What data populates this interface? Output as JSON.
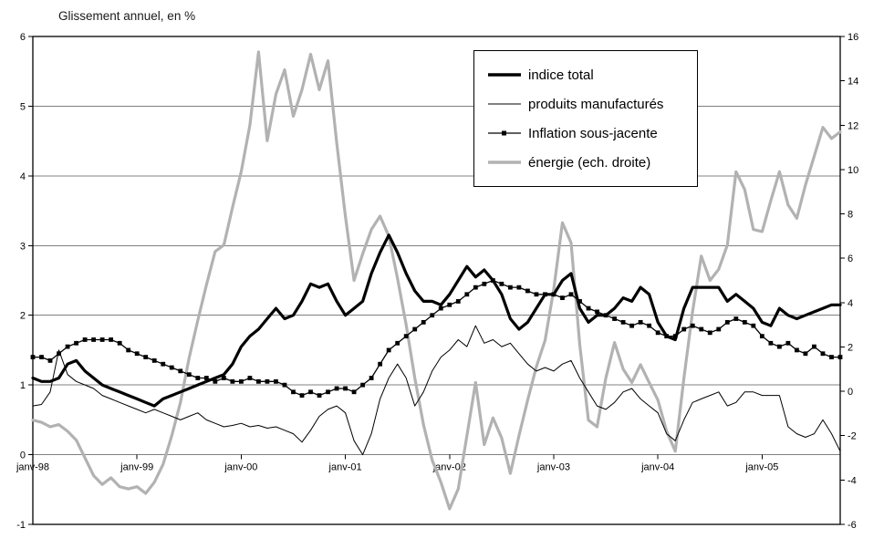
{
  "chart_data": {
    "type": "line",
    "title": "Glissement annuel, en %",
    "x_unit": "monthly",
    "x_start": "janv-98",
    "x_end": "oct-05",
    "n_points": 94,
    "x_tick_labels": [
      "janv-98",
      "janv-99",
      "janv-00",
      "janv-01",
      "janv-02",
      "janv-03",
      "janv-04",
      "janv-05"
    ],
    "x_tick_month_indices": [
      0,
      12,
      24,
      36,
      48,
      60,
      72,
      84
    ],
    "y_left": {
      "min": -1,
      "max": 6,
      "tick_step": 1,
      "labels": [
        "6",
        "5",
        "4",
        "3",
        "2",
        "1",
        "0",
        "-1"
      ]
    },
    "y_right": {
      "min": -6,
      "max": 16,
      "tick_step": 2,
      "labels": [
        "16",
        "14",
        "12",
        "10",
        "8",
        "6",
        "4",
        "2",
        "0",
        "-2",
        "-4",
        "-6"
      ]
    },
    "grid": "horizontal",
    "legend_position": "top-right-inside",
    "colors": {
      "line_black": "#000000",
      "line_gray": "#b2b2b2",
      "gridline": "#808080",
      "axis": "#000000"
    },
    "series": [
      {
        "name": "indice total",
        "axis": "left",
        "color": "#000000",
        "width": 3.2,
        "marker": "none",
        "values": [
          1.1,
          1.05,
          1.05,
          1.1,
          1.3,
          1.35,
          1.2,
          1.1,
          1.0,
          0.95,
          0.9,
          0.85,
          0.8,
          0.75,
          0.7,
          0.8,
          0.85,
          0.9,
          0.95,
          1.0,
          1.05,
          1.1,
          1.15,
          1.3,
          1.55,
          1.7,
          1.8,
          1.95,
          2.1,
          1.95,
          2.0,
          2.2,
          2.45,
          2.4,
          2.45,
          2.2,
          2.0,
          2.1,
          2.2,
          2.6,
          2.9,
          3.15,
          2.9,
          2.6,
          2.35,
          2.2,
          2.2,
          2.15,
          2.3,
          2.5,
          2.7,
          2.55,
          2.65,
          2.5,
          2.3,
          1.95,
          1.8,
          1.9,
          2.1,
          2.3,
          2.3,
          2.5,
          2.6,
          2.1,
          1.9,
          2.0,
          2.0,
          2.1,
          2.25,
          2.2,
          2.4,
          2.3,
          1.9,
          1.7,
          1.65,
          2.1,
          2.4,
          2.4,
          2.4,
          2.4,
          2.2,
          2.3,
          2.2,
          2.1,
          1.9,
          1.85,
          2.1,
          2.0,
          1.95,
          2.0,
          2.05,
          2.1,
          2.15,
          2.15
        ]
      },
      {
        "name": "produits manufacturés",
        "axis": "left",
        "color": "#000000",
        "width": 1,
        "marker": "none",
        "values": [
          0.7,
          0.72,
          0.9,
          1.5,
          1.15,
          1.05,
          1.0,
          0.95,
          0.85,
          0.8,
          0.75,
          0.7,
          0.65,
          0.6,
          0.65,
          0.6,
          0.55,
          0.5,
          0.55,
          0.6,
          0.5,
          0.45,
          0.4,
          0.42,
          0.45,
          0.4,
          0.42,
          0.38,
          0.4,
          0.35,
          0.3,
          0.18,
          0.35,
          0.55,
          0.65,
          0.7,
          0.6,
          0.2,
          0.0,
          0.3,
          0.8,
          1.1,
          1.3,
          1.1,
          0.7,
          0.9,
          1.2,
          1.4,
          1.5,
          1.65,
          1.55,
          1.85,
          1.6,
          1.65,
          1.55,
          1.6,
          1.45,
          1.3,
          1.2,
          1.25,
          1.2,
          1.3,
          1.35,
          1.1,
          0.9,
          0.7,
          0.65,
          0.75,
          0.9,
          0.95,
          0.8,
          0.7,
          0.6,
          0.3,
          0.2,
          0.5,
          0.75,
          0.8,
          0.85,
          0.9,
          0.7,
          0.75,
          0.9,
          0.9,
          0.85,
          0.85,
          0.85,
          0.4,
          0.3,
          0.25,
          0.3,
          0.5,
          0.3,
          0.05
        ]
      },
      {
        "name": "Inflation sous-jacente",
        "axis": "left",
        "color": "#000000",
        "width": 1.3,
        "marker": "square",
        "values": [
          1.4,
          1.4,
          1.35,
          1.45,
          1.55,
          1.6,
          1.65,
          1.65,
          1.65,
          1.65,
          1.6,
          1.5,
          1.45,
          1.4,
          1.35,
          1.3,
          1.25,
          1.2,
          1.15,
          1.1,
          1.1,
          1.05,
          1.1,
          1.05,
          1.05,
          1.1,
          1.05,
          1.05,
          1.05,
          1.0,
          0.9,
          0.85,
          0.9,
          0.85,
          0.9,
          0.95,
          0.95,
          0.9,
          1.0,
          1.1,
          1.3,
          1.5,
          1.6,
          1.7,
          1.8,
          1.9,
          2.0,
          2.1,
          2.15,
          2.2,
          2.3,
          2.4,
          2.45,
          2.5,
          2.45,
          2.4,
          2.4,
          2.35,
          2.3,
          2.3,
          2.3,
          2.25,
          2.3,
          2.2,
          2.1,
          2.05,
          2.0,
          1.95,
          1.9,
          1.85,
          1.9,
          1.85,
          1.75,
          1.7,
          1.7,
          1.8,
          1.85,
          1.8,
          1.75,
          1.8,
          1.9,
          1.95,
          1.9,
          1.85,
          1.7,
          1.6,
          1.55,
          1.6,
          1.5,
          1.45,
          1.55,
          1.45,
          1.4,
          1.4
        ]
      },
      {
        "name": "énergie (ech. droite)",
        "axis": "right",
        "color": "#b2b2b2",
        "width": 3.2,
        "marker": "none",
        "values": [
          -1.3,
          -1.4,
          -1.6,
          -1.5,
          -1.8,
          -2.2,
          -3.0,
          -3.8,
          -4.2,
          -3.9,
          -4.3,
          -4.4,
          -4.3,
          -4.6,
          -4.1,
          -3.3,
          -2.0,
          -0.5,
          1.5,
          3.2,
          4.8,
          6.3,
          6.6,
          8.3,
          9.9,
          12.0,
          15.3,
          11.3,
          13.4,
          14.5,
          12.4,
          13.6,
          15.2,
          13.6,
          14.9,
          11.2,
          7.9,
          5.0,
          6.2,
          7.3,
          7.9,
          7.0,
          5.1,
          3.0,
          0.6,
          -1.5,
          -3.1,
          -4.1,
          -5.3,
          -4.4,
          -2.0,
          0.4,
          -2.4,
          -1.2,
          -2.1,
          -3.7,
          -2.0,
          -0.4,
          1.1,
          2.3,
          4.6,
          7.6,
          6.7,
          2.1,
          -1.3,
          -1.6,
          0.6,
          2.2,
          1.0,
          0.4,
          1.2,
          0.4,
          -0.4,
          -1.8,
          -2.7,
          0.6,
          3.6,
          6.1,
          5.0,
          5.5,
          6.6,
          9.9,
          9.1,
          7.3,
          7.2,
          8.6,
          9.9,
          8.4,
          7.8,
          9.3,
          10.6,
          11.9,
          11.4,
          11.7
        ]
      }
    ]
  }
}
